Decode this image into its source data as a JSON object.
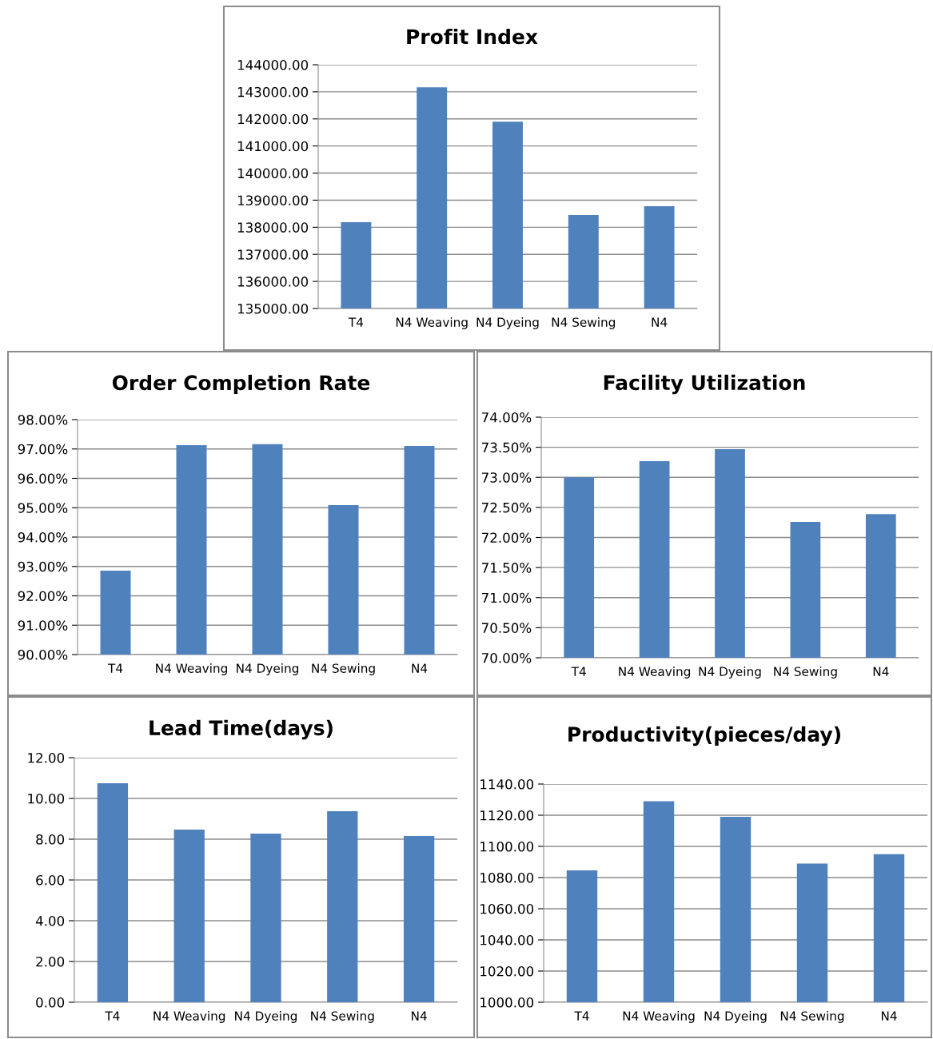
{
  "chart_data": [
    {
      "type": "bar",
      "title": "Profit Index",
      "categories": [
        "T4",
        "N4 Weaving",
        "N4 Dyeing",
        "N4 Sewing",
        "N4"
      ],
      "values": [
        138190,
        143170,
        141900,
        138450,
        138780
      ],
      "color": "#4f81bd",
      "ylim": [
        135000,
        144000
      ],
      "yticks": [
        {
          "value": 135000,
          "label": "135000.00"
        },
        {
          "value": 136000,
          "label": "136000.00"
        },
        {
          "value": 137000,
          "label": "137000.00"
        },
        {
          "value": 138000,
          "label": "138000.00"
        },
        {
          "value": 139000,
          "label": "139000.00"
        },
        {
          "value": 140000,
          "label": "140000.00"
        },
        {
          "value": 141000,
          "label": "141000.00"
        },
        {
          "value": 142000,
          "label": "142000.00"
        },
        {
          "value": 143000,
          "label": "143000.00"
        },
        {
          "value": 144000,
          "label": "144000.00"
        }
      ],
      "grid": "y",
      "legend": false
    },
    {
      "type": "bar",
      "title": "Order Completion Rate",
      "categories": [
        "T4",
        "N4 Weaving",
        "N4 Dyeing",
        "N4 Sewing",
        "N4"
      ],
      "values": [
        92.86,
        97.13,
        97.16,
        95.09,
        97.1
      ],
      "color": "#4f81bd",
      "ylim": [
        90,
        98
      ],
      "yticks": [
        {
          "value": 90,
          "label": "90.00%"
        },
        {
          "value": 91,
          "label": "91.00%"
        },
        {
          "value": 92,
          "label": "92.00%"
        },
        {
          "value": 93,
          "label": "93.00%"
        },
        {
          "value": 94,
          "label": "94.00%"
        },
        {
          "value": 95,
          "label": "95.00%"
        },
        {
          "value": 96,
          "label": "96.00%"
        },
        {
          "value": 97,
          "label": "97.00%"
        },
        {
          "value": 98,
          "label": "98.00%"
        }
      ],
      "grid": "y",
      "legend": false
    },
    {
      "type": "bar",
      "title": "Facility Utilization",
      "categories": [
        "T4",
        "N4 Weaving",
        "N4 Dyeing",
        "N4 Sewing",
        "N4"
      ],
      "values": [
        73.0,
        73.27,
        73.47,
        72.26,
        72.39
      ],
      "color": "#4f81bd",
      "ylim": [
        70,
        74
      ],
      "yticks": [
        {
          "value": 70,
          "label": "70.00%"
        },
        {
          "value": 70.5,
          "label": "70.50%"
        },
        {
          "value": 71,
          "label": "71.00%"
        },
        {
          "value": 71.5,
          "label": "71.50%"
        },
        {
          "value": 72,
          "label": "72.00%"
        },
        {
          "value": 72.5,
          "label": "72.50%"
        },
        {
          "value": 73,
          "label": "73.00%"
        },
        {
          "value": 73.5,
          "label": "73.50%"
        },
        {
          "value": 74,
          "label": "74.00%"
        }
      ],
      "grid": "y",
      "legend": false
    },
    {
      "type": "bar",
      "title": "Lead Time(days)",
      "categories": [
        "T4",
        "N4 Weaving",
        "N4 Dyeing",
        "N4 Sewing",
        "N4"
      ],
      "values": [
        10.75,
        8.47,
        8.27,
        9.37,
        8.16
      ],
      "color": "#4f81bd",
      "ylim": [
        0,
        12
      ],
      "yticks": [
        {
          "value": 0,
          "label": "0.00"
        },
        {
          "value": 2,
          "label": "2.00"
        },
        {
          "value": 4,
          "label": "4.00"
        },
        {
          "value": 6,
          "label": "6.00"
        },
        {
          "value": 8,
          "label": "8.00"
        },
        {
          "value": 10,
          "label": "10.00"
        },
        {
          "value": 12,
          "label": "12.00"
        }
      ],
      "grid": "y",
      "legend": false
    },
    {
      "type": "bar",
      "title": "Productivity(pieces/day)",
      "categories": [
        "T4",
        "N4 Weaving",
        "N4 Dyeing",
        "N4 Sewing",
        "N4"
      ],
      "values": [
        1084.6,
        1129,
        1119,
        1089,
        1095
      ],
      "color": "#4f81bd",
      "ylim": [
        1000,
        1140
      ],
      "yticks": [
        {
          "value": 1000,
          "label": "1000.00"
        },
        {
          "value": 1020,
          "label": "1020.00"
        },
        {
          "value": 1040,
          "label": "1040.00"
        },
        {
          "value": 1060,
          "label": "1060.00"
        },
        {
          "value": 1080,
          "label": "1080.00"
        },
        {
          "value": 1100,
          "label": "1100.00"
        },
        {
          "value": 1120,
          "label": "1120.00"
        },
        {
          "value": 1140,
          "label": "1140.00"
        }
      ],
      "grid": "y",
      "legend": false
    }
  ]
}
